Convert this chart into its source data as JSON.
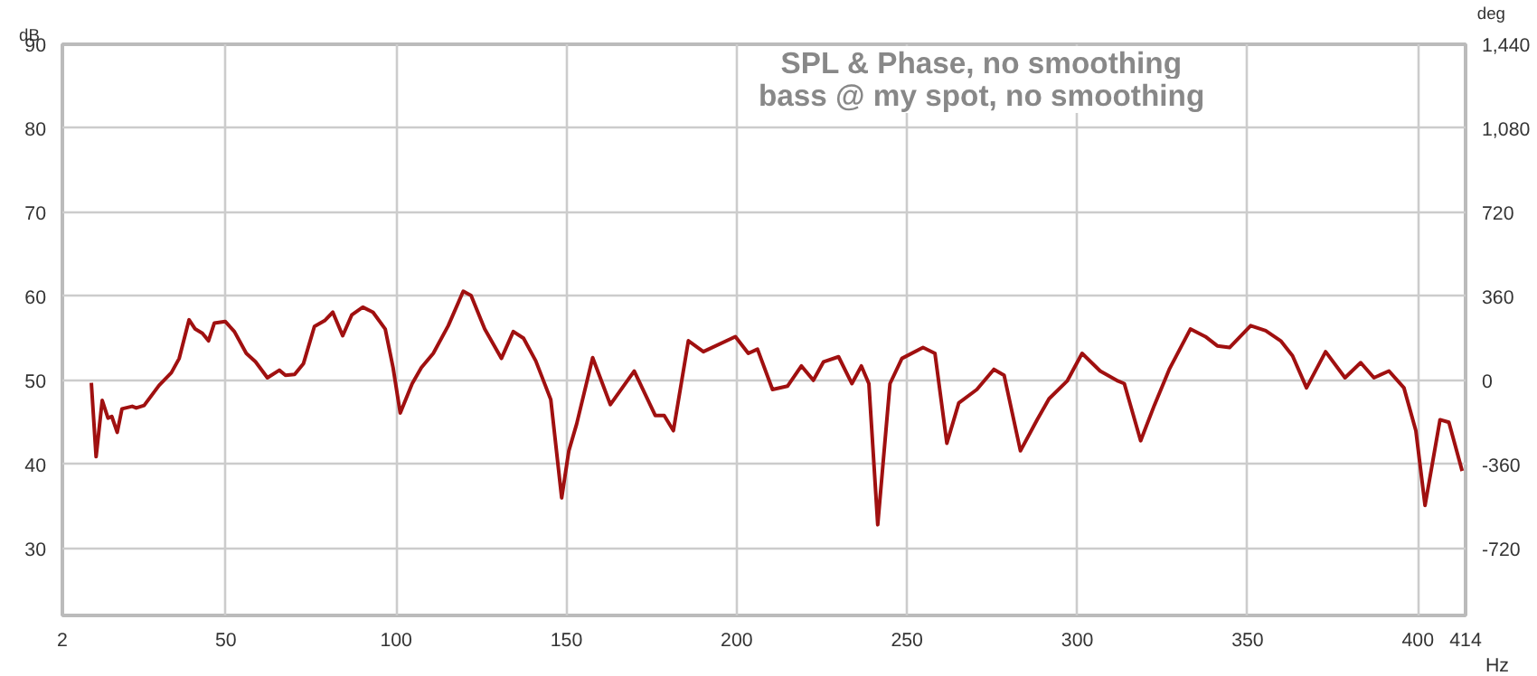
{
  "chart_data": {
    "type": "line",
    "title": "SPL & Phase, no smoothing",
    "subtitle": "bass @ my spot, no smoothing",
    "xlabel": "Hz",
    "ylabel": "dB",
    "y2label": "deg",
    "xlim": [
      2,
      414
    ],
    "xticks": [
      2,
      50,
      100,
      150,
      200,
      250,
      300,
      350,
      400,
      414
    ],
    "ylim": [
      22,
      90
    ],
    "yticks": [
      30,
      40,
      50,
      60,
      70,
      80,
      90
    ],
    "y2lim": [
      -1008,
      1440
    ],
    "y2ticks": [
      {
        "value": -720,
        "label": "-720"
      },
      {
        "value": -360,
        "label": "-360"
      },
      0,
      360,
      720,
      {
        "value": 1080,
        "label": "1,080"
      },
      {
        "value": 1440,
        "label": "1,440"
      }
    ],
    "grid": true,
    "marker": "none",
    "line_style": "solid",
    "series": [
      {
        "color": "#a01010",
        "x": [
          10.5,
          11.9,
          13.7,
          15.4,
          16.5,
          18.1,
          19.5,
          22.5,
          23.7,
          26,
          30.4,
          34,
          36.3,
          39.2,
          41,
          43.1,
          44.9,
          46.6,
          49.8,
          52.5,
          56,
          58.7,
          62.2,
          65.7,
          67.5,
          70.2,
          72.8,
          76,
          79,
          81.4,
          84.3,
          87,
          90.2,
          93.2,
          96.8,
          99.1,
          101.2,
          104.7,
          107.4,
          110.9,
          115.3,
          119.7,
          122,
          126,
          130.9,
          134.4,
          137.4,
          141,
          145.4,
          148.6,
          150.7,
          153,
          157.7,
          162.9,
          169.9,
          176.1,
          178.7,
          181.4,
          185.8,
          190.2,
          199.6,
          203.4,
          206.1,
          210.5,
          214.9,
          219,
          222.5,
          225.5,
          229.9,
          233.8,
          236.6,
          238.8,
          241.4,
          245,
          248.5,
          254.7,
          258.2,
          261.7,
          265.2,
          270.5,
          275.5,
          278.5,
          283.3,
          288.2,
          291.7,
          297,
          301.4,
          306.7,
          312,
          313.8,
          318.6,
          322.6,
          327,
          333.2,
          337.6,
          341.1,
          344.7,
          350.9,
          355.3,
          359.7,
          363.2,
          367.3,
          372.9,
          378.6,
          383.2,
          387.1,
          391.5,
          395.9,
          399.4,
          402.1,
          406.5,
          409.1,
          413
        ],
        "values": [
          49.7,
          40.9,
          47.6,
          45.5,
          45.7,
          43.8,
          46.6,
          46.9,
          46.7,
          47,
          49.4,
          50.9,
          52.6,
          57.2,
          56.1,
          55.6,
          54.7,
          56.8,
          57,
          55.8,
          53.2,
          52.2,
          50.3,
          51.2,
          50.6,
          50.7,
          52,
          56.4,
          57.1,
          58.1,
          55.3,
          57.8,
          58.7,
          58.1,
          56.1,
          51.5,
          46.1,
          49.6,
          51.5,
          53.2,
          56.5,
          60.6,
          60.1,
          56.1,
          52.6,
          55.8,
          55,
          52.3,
          47.7,
          36,
          41.6,
          44.8,
          52.7,
          47.1,
          51.1,
          45.8,
          45.8,
          44,
          54.7,
          53.4,
          55.2,
          53.2,
          53.7,
          48.9,
          49.3,
          51.7,
          50,
          52.2,
          52.8,
          49.6,
          51.7,
          49.6,
          32.8,
          49.6,
          52.6,
          53.9,
          53.2,
          42.5,
          47.3,
          48.9,
          51.3,
          50.6,
          41.6,
          45.3,
          47.8,
          49.9,
          53.2,
          51.1,
          49.9,
          49.6,
          42.8,
          47,
          51.3,
          56.1,
          55.2,
          54.1,
          53.9,
          56.5,
          55.9,
          54.7,
          52.9,
          49.1,
          53.4,
          50.3,
          52.1,
          50.3,
          51.1,
          49.1,
          44,
          35.1,
          45.3,
          45,
          39.2
        ]
      }
    ]
  }
}
